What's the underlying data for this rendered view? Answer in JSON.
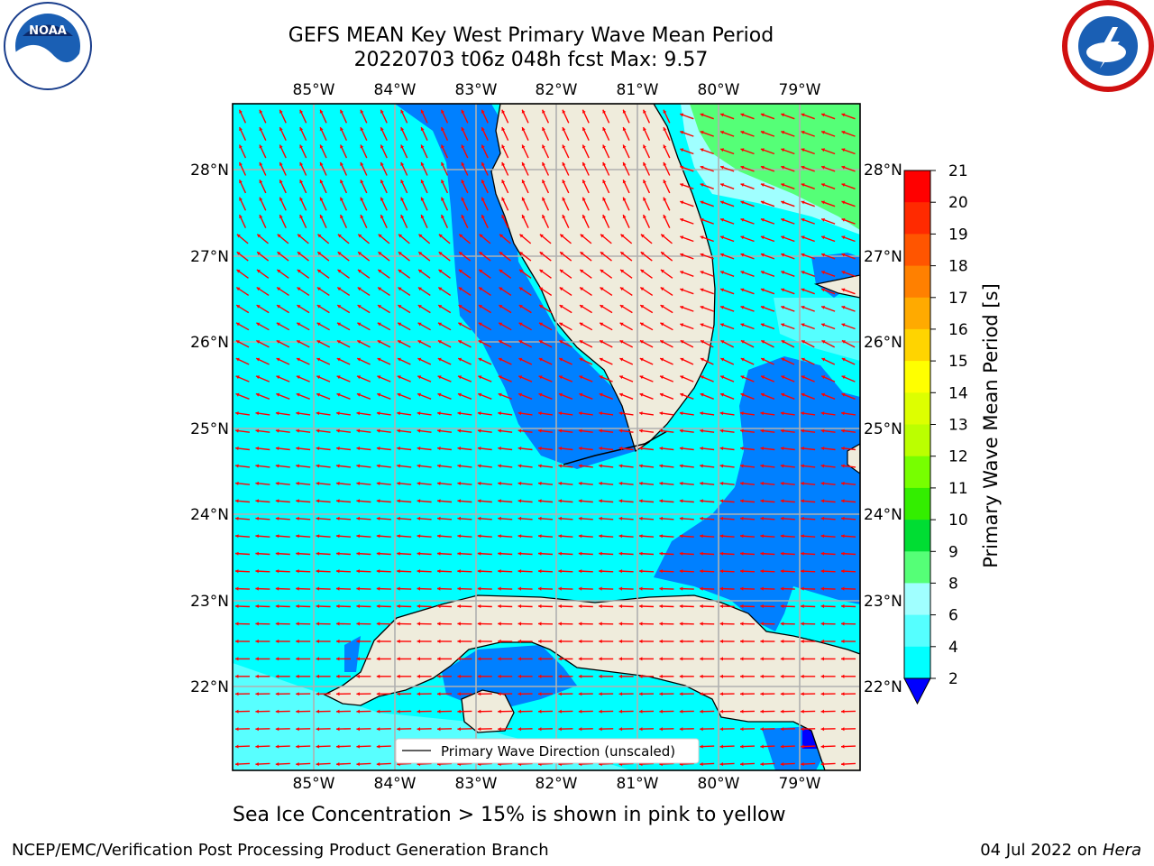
{
  "title": {
    "line1": "GEFS MEAN Key West Primary Wave Mean Period",
    "line2": "20220703 t06z 048h fcst   Max: 9.57"
  },
  "logos": {
    "left": {
      "text": "NOAA",
      "icon": "noaa-logo-icon"
    },
    "right": {
      "icon": "nws-logo-icon"
    }
  },
  "map": {
    "lon_ticks": [
      "85°W",
      "84°W",
      "83°W",
      "82°W",
      "81°W",
      "80°W",
      "79°W"
    ],
    "lat_ticks": [
      "28°N",
      "27°N",
      "26°N",
      "25°N",
      "24°N",
      "23°N",
      "22°N"
    ],
    "legend_label": "Primary Wave Direction (unscaled)",
    "colors": {
      "ocean_cyan": "#00ffff",
      "ocean_blue": "#0080ff",
      "land": "#efecdc",
      "arrow": "#ff0000",
      "grid": "#b0b0b0",
      "light_cyan": "#a0ffff",
      "green": "#55ff77"
    }
  },
  "colorbar": {
    "label": "Primary Wave Mean Period [s]",
    "levels": [
      "21",
      "20",
      "19",
      "18",
      "17",
      "16",
      "15",
      "14",
      "13",
      "12",
      "11",
      "10",
      "9",
      "8",
      "6",
      "4",
      "2"
    ],
    "colors": [
      "#ff0000",
      "#ff2a00",
      "#ff5500",
      "#ff8000",
      "#ffaa00",
      "#ffd400",
      "#ffff00",
      "#ddff00",
      "#bbff00",
      "#77ff00",
      "#33ee00",
      "#00dd33",
      "#55ff77",
      "#a0ffff",
      "#55ffff",
      "#00ffff",
      "#0080ff",
      "#0000ff"
    ]
  },
  "subcaption": "Sea Ice Concentration > 15% is shown in pink to yellow",
  "footer": {
    "left": "NCEP/EMC/Verification Post Processing Product Generation Branch",
    "right_date": "04 Jul 2022 on ",
    "right_host": "Hera"
  }
}
